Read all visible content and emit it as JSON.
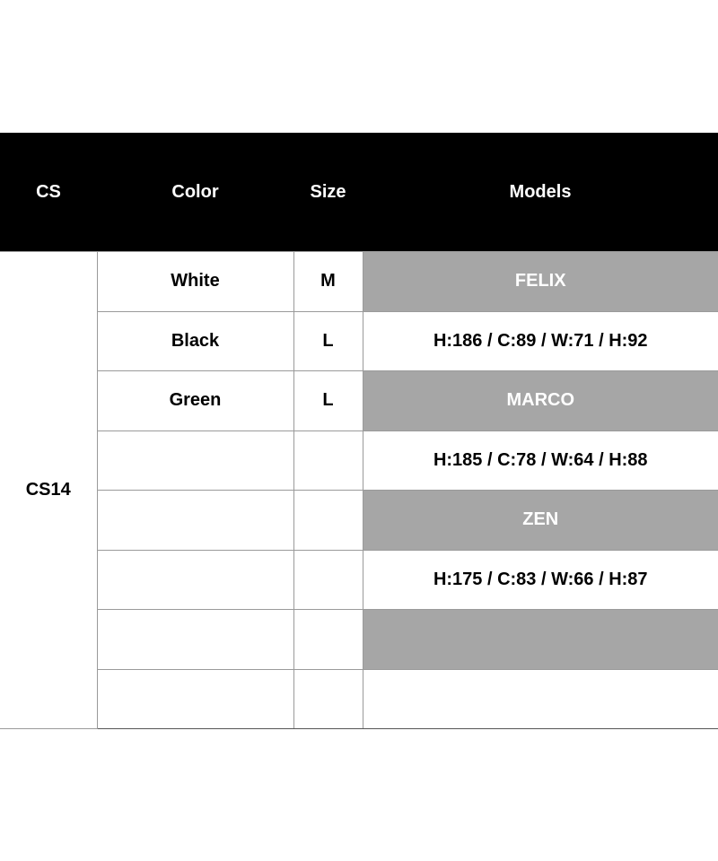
{
  "headers": {
    "cs": "CS",
    "color": "Color",
    "size": "Size",
    "models": "Models"
  },
  "cs_value": "CS14",
  "rows": [
    {
      "color": "White",
      "size": "M",
      "model": "FELIX",
      "shaded": true
    },
    {
      "color": "Black",
      "size": "L",
      "model": "H:186 / C:89 / W:71 / H:92",
      "shaded": false
    },
    {
      "color": "Green",
      "size": "L",
      "model": "MARCO",
      "shaded": true
    },
    {
      "color": "",
      "size": "",
      "model": "H:185 / C:78 / W:64 / H:88",
      "shaded": false
    },
    {
      "color": "",
      "size": "",
      "model": "ZEN",
      "shaded": true
    },
    {
      "color": "",
      "size": "",
      "model": "H:175 / C:83 / W:66 / H:87",
      "shaded": false
    },
    {
      "color": "",
      "size": "",
      "model": "",
      "shaded": true
    },
    {
      "color": "",
      "size": "",
      "model": "",
      "shaded": false
    }
  ],
  "colors": {
    "header_bg": "#000000",
    "shaded_cell": "#a6a6a6",
    "grid": "#9a9a9a"
  }
}
